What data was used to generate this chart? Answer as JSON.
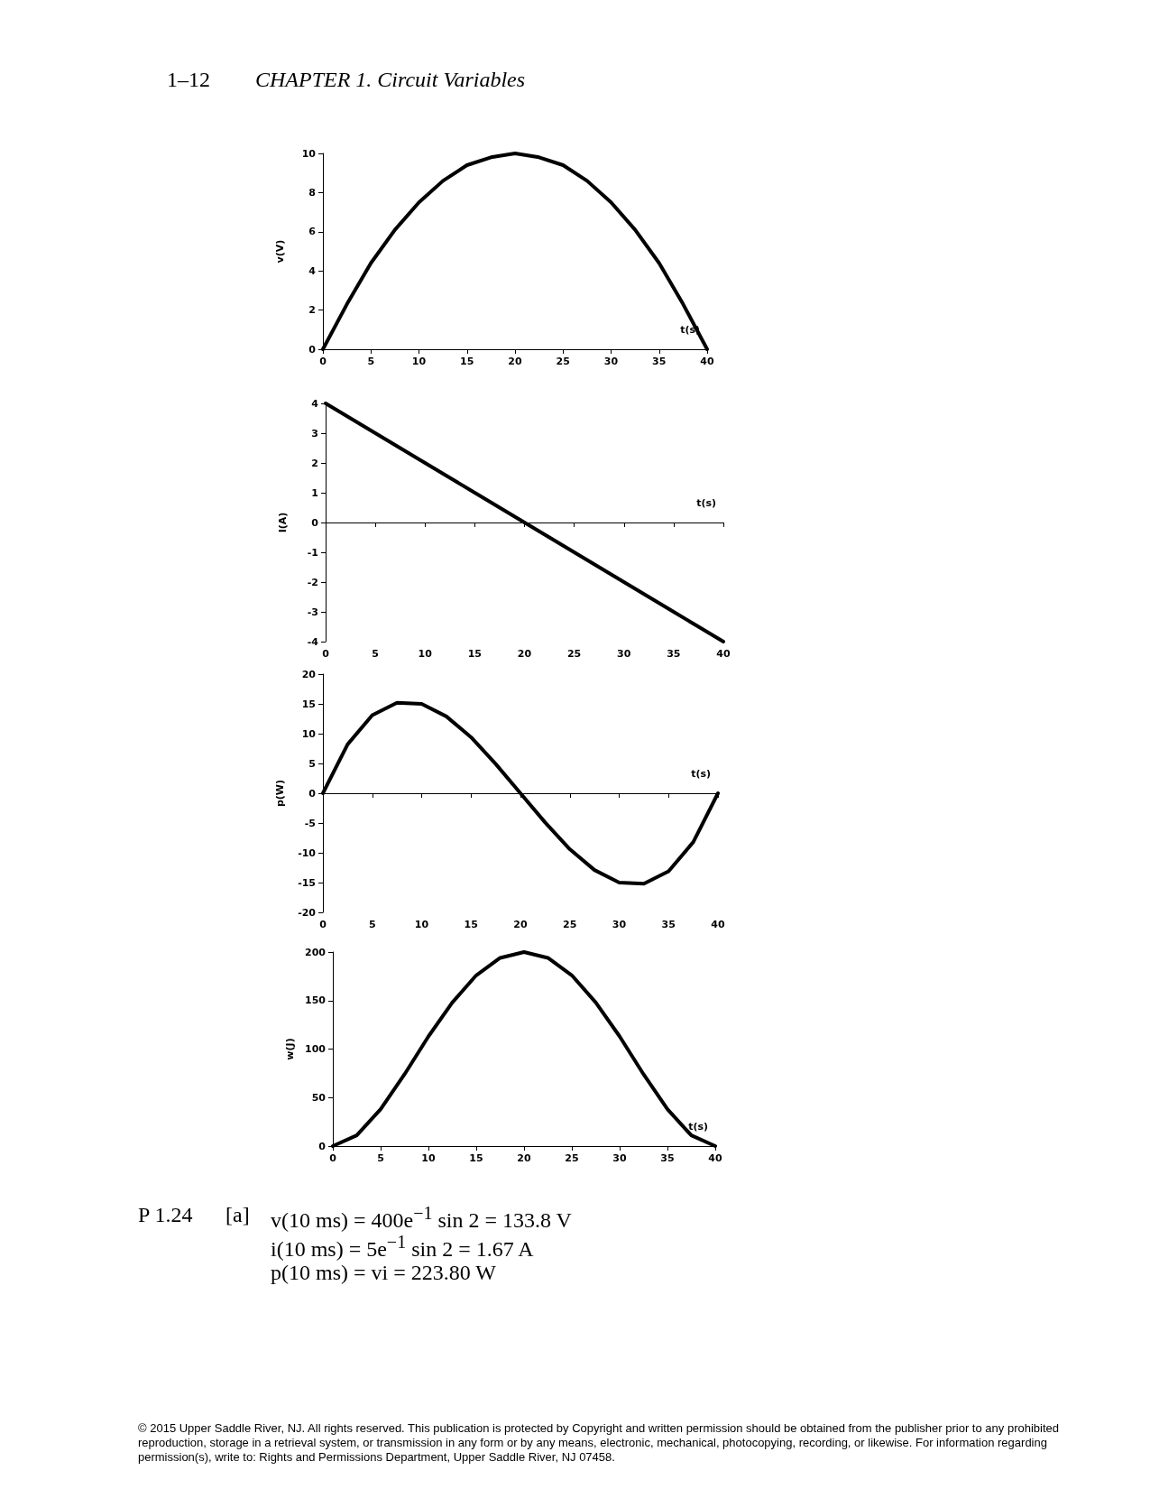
{
  "chart_data": [
    {
      "type": "line",
      "ylabel": "v(V)",
      "xlabel": "t(s)",
      "annotations": [
        "1–12",
        "CHAPTER 1. Circuit Variables"
      ],
      "x": [
        0,
        2.5,
        5,
        7.5,
        10,
        12.5,
        15,
        17.5,
        20,
        22.5,
        25,
        27.5,
        30,
        32.5,
        35,
        37.5,
        40
      ],
      "color": "#000000",
      "line_style": "solid",
      "values": [
        0,
        2.3,
        4.4,
        6.1,
        7.5,
        8.6,
        9.4,
        9.8,
        10,
        9.8,
        9.4,
        8.6,
        7.5,
        6.1,
        4.4,
        2.3,
        0
      ],
      "xlim": [
        0,
        40
      ],
      "xticks": [
        0,
        5,
        10,
        15,
        20,
        25,
        30,
        35,
        40
      ],
      "ylim": [
        0,
        10
      ],
      "yticks": [
        0,
        2,
        4,
        6,
        8,
        10
      ]
    },
    {
      "type": "line",
      "ylabel": "I(A)",
      "xlabel": "t(s)",
      "x": [
        0,
        2.5,
        5,
        7.5,
        10,
        12.5,
        15,
        17.5,
        20,
        22.5,
        25,
        27.5,
        30,
        32.5,
        35,
        37.5,
        40
      ],
      "color": "#000000",
      "line_style": "solid",
      "values": [
        4,
        3.5,
        3,
        2.5,
        2,
        1.5,
        1,
        0.5,
        0,
        -0.5,
        -1,
        -1.5,
        -2,
        -2.5,
        -3,
        -3.5,
        -4
      ],
      "xlim": [
        0,
        40
      ],
      "xticks": [
        0,
        5,
        10,
        15,
        20,
        25,
        30,
        35,
        40
      ],
      "ylim": [
        -4,
        4
      ],
      "yticks": [
        -4,
        -3,
        -2,
        -1,
        0,
        1,
        2,
        3,
        4
      ]
    },
    {
      "type": "line",
      "ylabel": "p(W)",
      "xlabel": "t(s)",
      "x": [
        0,
        2.5,
        5,
        7.5,
        10,
        12.5,
        15,
        17.5,
        20,
        22.5,
        25,
        27.5,
        30,
        32.5,
        35,
        37.5,
        40
      ],
      "color": "#000000",
      "line_style": "solid",
      "values": [
        0,
        8.2,
        13.1,
        15.2,
        15,
        12.9,
        9.4,
        4.9,
        0,
        -4.9,
        -9.4,
        -12.9,
        -15,
        -15.2,
        -13.1,
        -8.2,
        0
      ],
      "xlim": [
        0,
        40
      ],
      "xticks": [
        0,
        5,
        10,
        15,
        20,
        25,
        30,
        35,
        40
      ],
      "ylim": [
        -20,
        20
      ],
      "yticks": [
        -20,
        -15,
        -10,
        -5,
        0,
        5,
        10,
        15,
        20
      ]
    },
    {
      "type": "line",
      "ylabel": "w(J)",
      "xlabel": "t(s)",
      "x": [
        0,
        2.5,
        5,
        7.5,
        10,
        12.5,
        15,
        17.5,
        20,
        22.5,
        25,
        27.5,
        30,
        32.5,
        35,
        37.5,
        40
      ],
      "color": "#000000",
      "line_style": "solid",
      "values": [
        0,
        11,
        38,
        74,
        113,
        148,
        176,
        194,
        200,
        194,
        176,
        148,
        113,
        74,
        38,
        11,
        0
      ],
      "xlim": [
        0,
        40
      ],
      "xticks": [
        0,
        5,
        10,
        15,
        20,
        25,
        30,
        35,
        40
      ],
      "ylim": [
        0,
        200
      ],
      "yticks": [
        0,
        50,
        100,
        150,
        200
      ],
      "annotations": [
        "P 1.24",
        "[a]",
        "v(10 ms) = 400e$^{−1}$ sin 2 = 133.8 V",
        "i(10 ms) = 5e$^{−1}$ sin 2 = 1.67 A",
        "p(10 ms) = vi = 223.80 W",
        "© 2015 Upper Saddle River, NJ. All rights reserved. This publication is protected by Copyright and written permission should be obtained from the publisher prior to any prohibited reproduction, storage in a retrieval system, or transmission in any form or by any means, electronic, mechanical, photocopying, recording, or likewise. For information regarding permission(s), write to: Rights and Permissions Department, Upper Saddle River, NJ 07458."
      ]
    }
  ]
}
